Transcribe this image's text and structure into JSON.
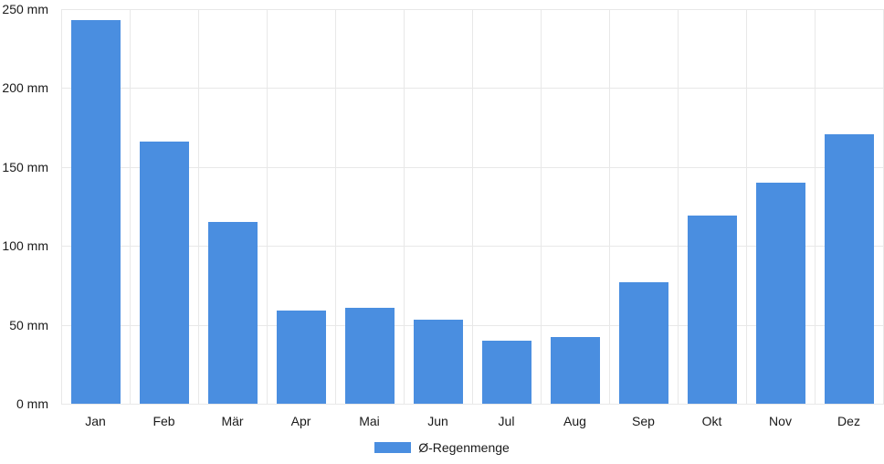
{
  "chart_data": {
    "type": "bar",
    "title": "",
    "xlabel": "",
    "ylabel": "",
    "unit": "mm",
    "categories": [
      "Jan",
      "Feb",
      "Mär",
      "Apr",
      "Mai",
      "Jun",
      "Jul",
      "Aug",
      "Sep",
      "Okt",
      "Nov",
      "Dez"
    ],
    "series": [
      {
        "name": "Ø-Regenmenge",
        "color": "#4a8ee0",
        "values": [
          243,
          166,
          115,
          59,
          61,
          53,
          40,
          42,
          77,
          119,
          140,
          171
        ]
      }
    ],
    "ylim": [
      0,
      250
    ],
    "yticks": [
      0,
      50,
      100,
      150,
      200,
      250
    ],
    "ytick_labels": [
      "0 mm",
      "50 mm",
      "100 mm",
      "150 mm",
      "200 mm",
      "250 mm"
    ],
    "grid": true,
    "legend_position": "bottom",
    "colors": {
      "grid": "#e8e8e8",
      "text": "#1a1a1a",
      "background": "#ffffff"
    }
  }
}
